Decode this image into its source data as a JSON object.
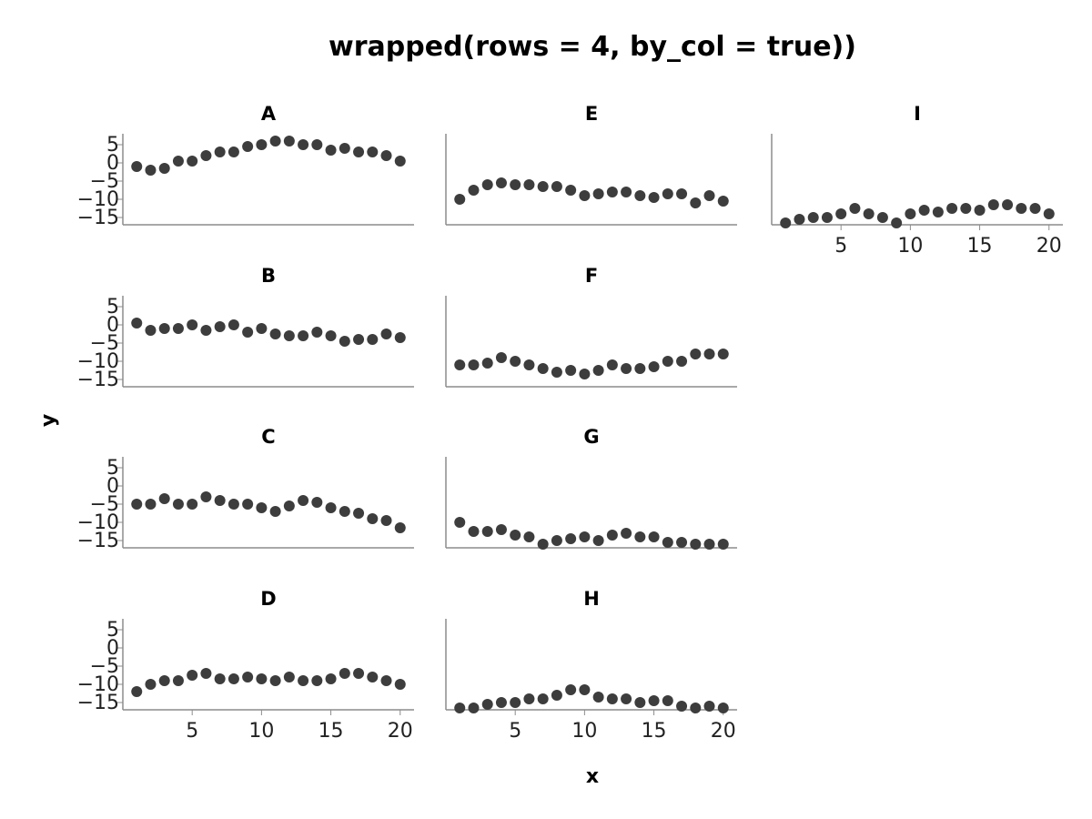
{
  "chart_data": {
    "type": "scatter",
    "title": "wrapped(rows = 4, by_col = true))",
    "xlabel": "x",
    "ylabel": "y",
    "ylim": [
      -17,
      8
    ],
    "xlim": [
      0,
      21
    ],
    "yticks": [
      5,
      0,
      -5,
      -10,
      -15
    ],
    "ytick_labels": [
      "5",
      "0",
      "−5",
      "−10",
      "−15"
    ],
    "xticks": [
      5,
      10,
      15,
      20
    ],
    "xtick_labels": [
      "5",
      "10",
      "15",
      "20"
    ],
    "grid": false,
    "point_color": "#3d3d3d",
    "axis_color": "#8c8c8c",
    "layout": "wrapped, 4 rows, filled by column",
    "x": [
      1,
      2,
      3,
      4,
      5,
      6,
      7,
      8,
      9,
      10,
      11,
      12,
      13,
      14,
      15,
      16,
      17,
      18,
      19,
      20
    ],
    "panels": [
      {
        "name": "A",
        "values": [
          -1,
          -2,
          -1.5,
          0.5,
          0.5,
          2,
          3,
          3,
          4.5,
          5,
          6,
          6,
          5,
          5,
          3.5,
          4,
          3,
          3,
          2,
          0.5
        ]
      },
      {
        "name": "B",
        "values": [
          0.5,
          -1.5,
          -1,
          -1,
          0,
          -1.5,
          -0.5,
          0,
          -2,
          -1,
          -2.5,
          -3,
          -3,
          -2,
          -3,
          -4.5,
          -4,
          -4,
          -2.5,
          -3.5
        ]
      },
      {
        "name": "C",
        "values": [
          -5,
          -5,
          -3.5,
          -5,
          -5,
          -3,
          -4,
          -5,
          -5,
          -6,
          -7,
          -5.5,
          -4,
          -4.5,
          -6,
          -7,
          -7.5,
          -9,
          -9.5,
          -11.5
        ]
      },
      {
        "name": "D",
        "values": [
          -12,
          -10,
          -9,
          -9,
          -7.5,
          -7,
          -8.5,
          -8.5,
          -8,
          -8.5,
          -9,
          -8,
          -9,
          -9,
          -8.5,
          -7,
          -7,
          -8,
          -9,
          -10
        ]
      },
      {
        "name": "E",
        "values": [
          -10,
          -7.5,
          -6,
          -5.5,
          -6,
          -6,
          -6.5,
          -6.5,
          -7.5,
          -9,
          -8.5,
          -8,
          -8,
          -9,
          -9.5,
          -8.5,
          -8.5,
          -11,
          -9,
          -10.5
        ]
      },
      {
        "name": "F",
        "values": [
          -11,
          -11,
          -10.5,
          -9,
          -10,
          -11,
          -12,
          -13,
          -12.5,
          -13.5,
          -12.5,
          -11,
          -12,
          -12,
          -11.5,
          -10,
          -10,
          -8,
          -8,
          -8
        ]
      },
      {
        "name": "G",
        "values": [
          -10,
          -12.5,
          -12.5,
          -12,
          -13.5,
          -14,
          -16,
          -15,
          -14.5,
          -14,
          -15,
          -13.5,
          -13,
          -14,
          -14,
          -15.5,
          -15.5,
          -16,
          -16,
          -16
        ]
      },
      {
        "name": "H",
        "values": [
          -16.5,
          -16.5,
          -15.5,
          -15,
          -15,
          -14,
          -14,
          -13,
          -11.5,
          -11.5,
          -13.5,
          -14,
          -14,
          -15,
          -14.5,
          -14.5,
          -16,
          -16.5,
          -16,
          -16.5
        ]
      },
      {
        "name": "I",
        "values": [
          -16.5,
          -15.5,
          -15,
          -15,
          -14,
          -12.5,
          -14,
          -15,
          -16.5,
          -14,
          -13,
          -13.5,
          -12.5,
          -12.5,
          -13,
          -11.5,
          -11.5,
          -12.5,
          -12.5,
          -14
        ]
      }
    ]
  }
}
